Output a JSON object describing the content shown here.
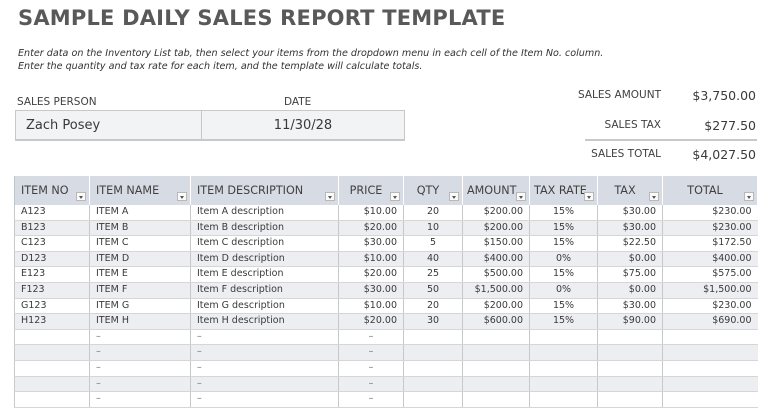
{
  "header": {
    "title": "SAMPLE DAILY SALES REPORT TEMPLATE",
    "instructions": [
      "Enter data on the Inventory List tab, then select your items from the dropdown menu in each cell of the Item No. column.",
      "Enter the quantity and tax rate for each item, and the template will calculate totals."
    ]
  },
  "info": {
    "sales_person_label": "SALES PERSON",
    "date_label": "DATE",
    "sales_person": "Zach Posey",
    "date": "11/30/28"
  },
  "summary": {
    "sales_amount_label": "SALES AMOUNT",
    "sales_amount": "$3,750.00",
    "sales_tax_label": "SALES TAX",
    "sales_tax": "$277.50",
    "sales_total_label": "SALES TOTAL",
    "sales_total": "$4,027.50"
  },
  "table": {
    "columns": [
      "ITEM NO",
      "ITEM NAME",
      "ITEM DESCRIPTION",
      "PRICE",
      "QTY",
      "AMOUNT",
      "TAX RATE",
      "TAX",
      "TOTAL"
    ],
    "rows": [
      [
        "A123",
        "ITEM A",
        "Item A description",
        "$10.00",
        "20",
        "$200.00",
        "15%",
        "$30.00",
        "$230.00"
      ],
      [
        "B123",
        "ITEM B",
        "Item B description",
        "$20.00",
        "10",
        "$200.00",
        "15%",
        "$30.00",
        "$230.00"
      ],
      [
        "C123",
        "ITEM C",
        "Item C description",
        "$30.00",
        "5",
        "$150.00",
        "15%",
        "$22.50",
        "$172.50"
      ],
      [
        "D123",
        "ITEM D",
        "Item D description",
        "$10.00",
        "40",
        "$400.00",
        "0%",
        "$0.00",
        "$400.00"
      ],
      [
        "E123",
        "ITEM E",
        "Item E description",
        "$20.00",
        "25",
        "$500.00",
        "15%",
        "$75.00",
        "$575.00"
      ],
      [
        "F123",
        "ITEM F",
        "Item F description",
        "$30.00",
        "50",
        "$1,500.00",
        "0%",
        "$0.00",
        "$1,500.00"
      ],
      [
        "G123",
        "ITEM G",
        "Item G description",
        "$10.00",
        "20",
        "$200.00",
        "15%",
        "$30.00",
        "$230.00"
      ],
      [
        "H123",
        "ITEM H",
        "Item H description",
        "$20.00",
        "30",
        "$600.00",
        "15%",
        "$90.00",
        "$690.00"
      ],
      [
        "",
        "–",
        "–",
        "–",
        "",
        "",
        "",
        "",
        ""
      ],
      [
        "",
        "–",
        "–",
        "–",
        "",
        "",
        "",
        "",
        ""
      ],
      [
        "",
        "–",
        "–",
        "–",
        "",
        "",
        "",
        "",
        ""
      ],
      [
        "",
        "–",
        "–",
        "–",
        "",
        "",
        "",
        "",
        ""
      ],
      [
        "",
        "–",
        "–",
        "–",
        "",
        "",
        "",
        "",
        ""
      ]
    ]
  },
  "icons": {
    "column_filter": "dropdown-arrow-icon"
  },
  "colors": {
    "header_bg": "#d6dbe4",
    "stripe_bg": "#eceef2",
    "title": "#595959"
  }
}
